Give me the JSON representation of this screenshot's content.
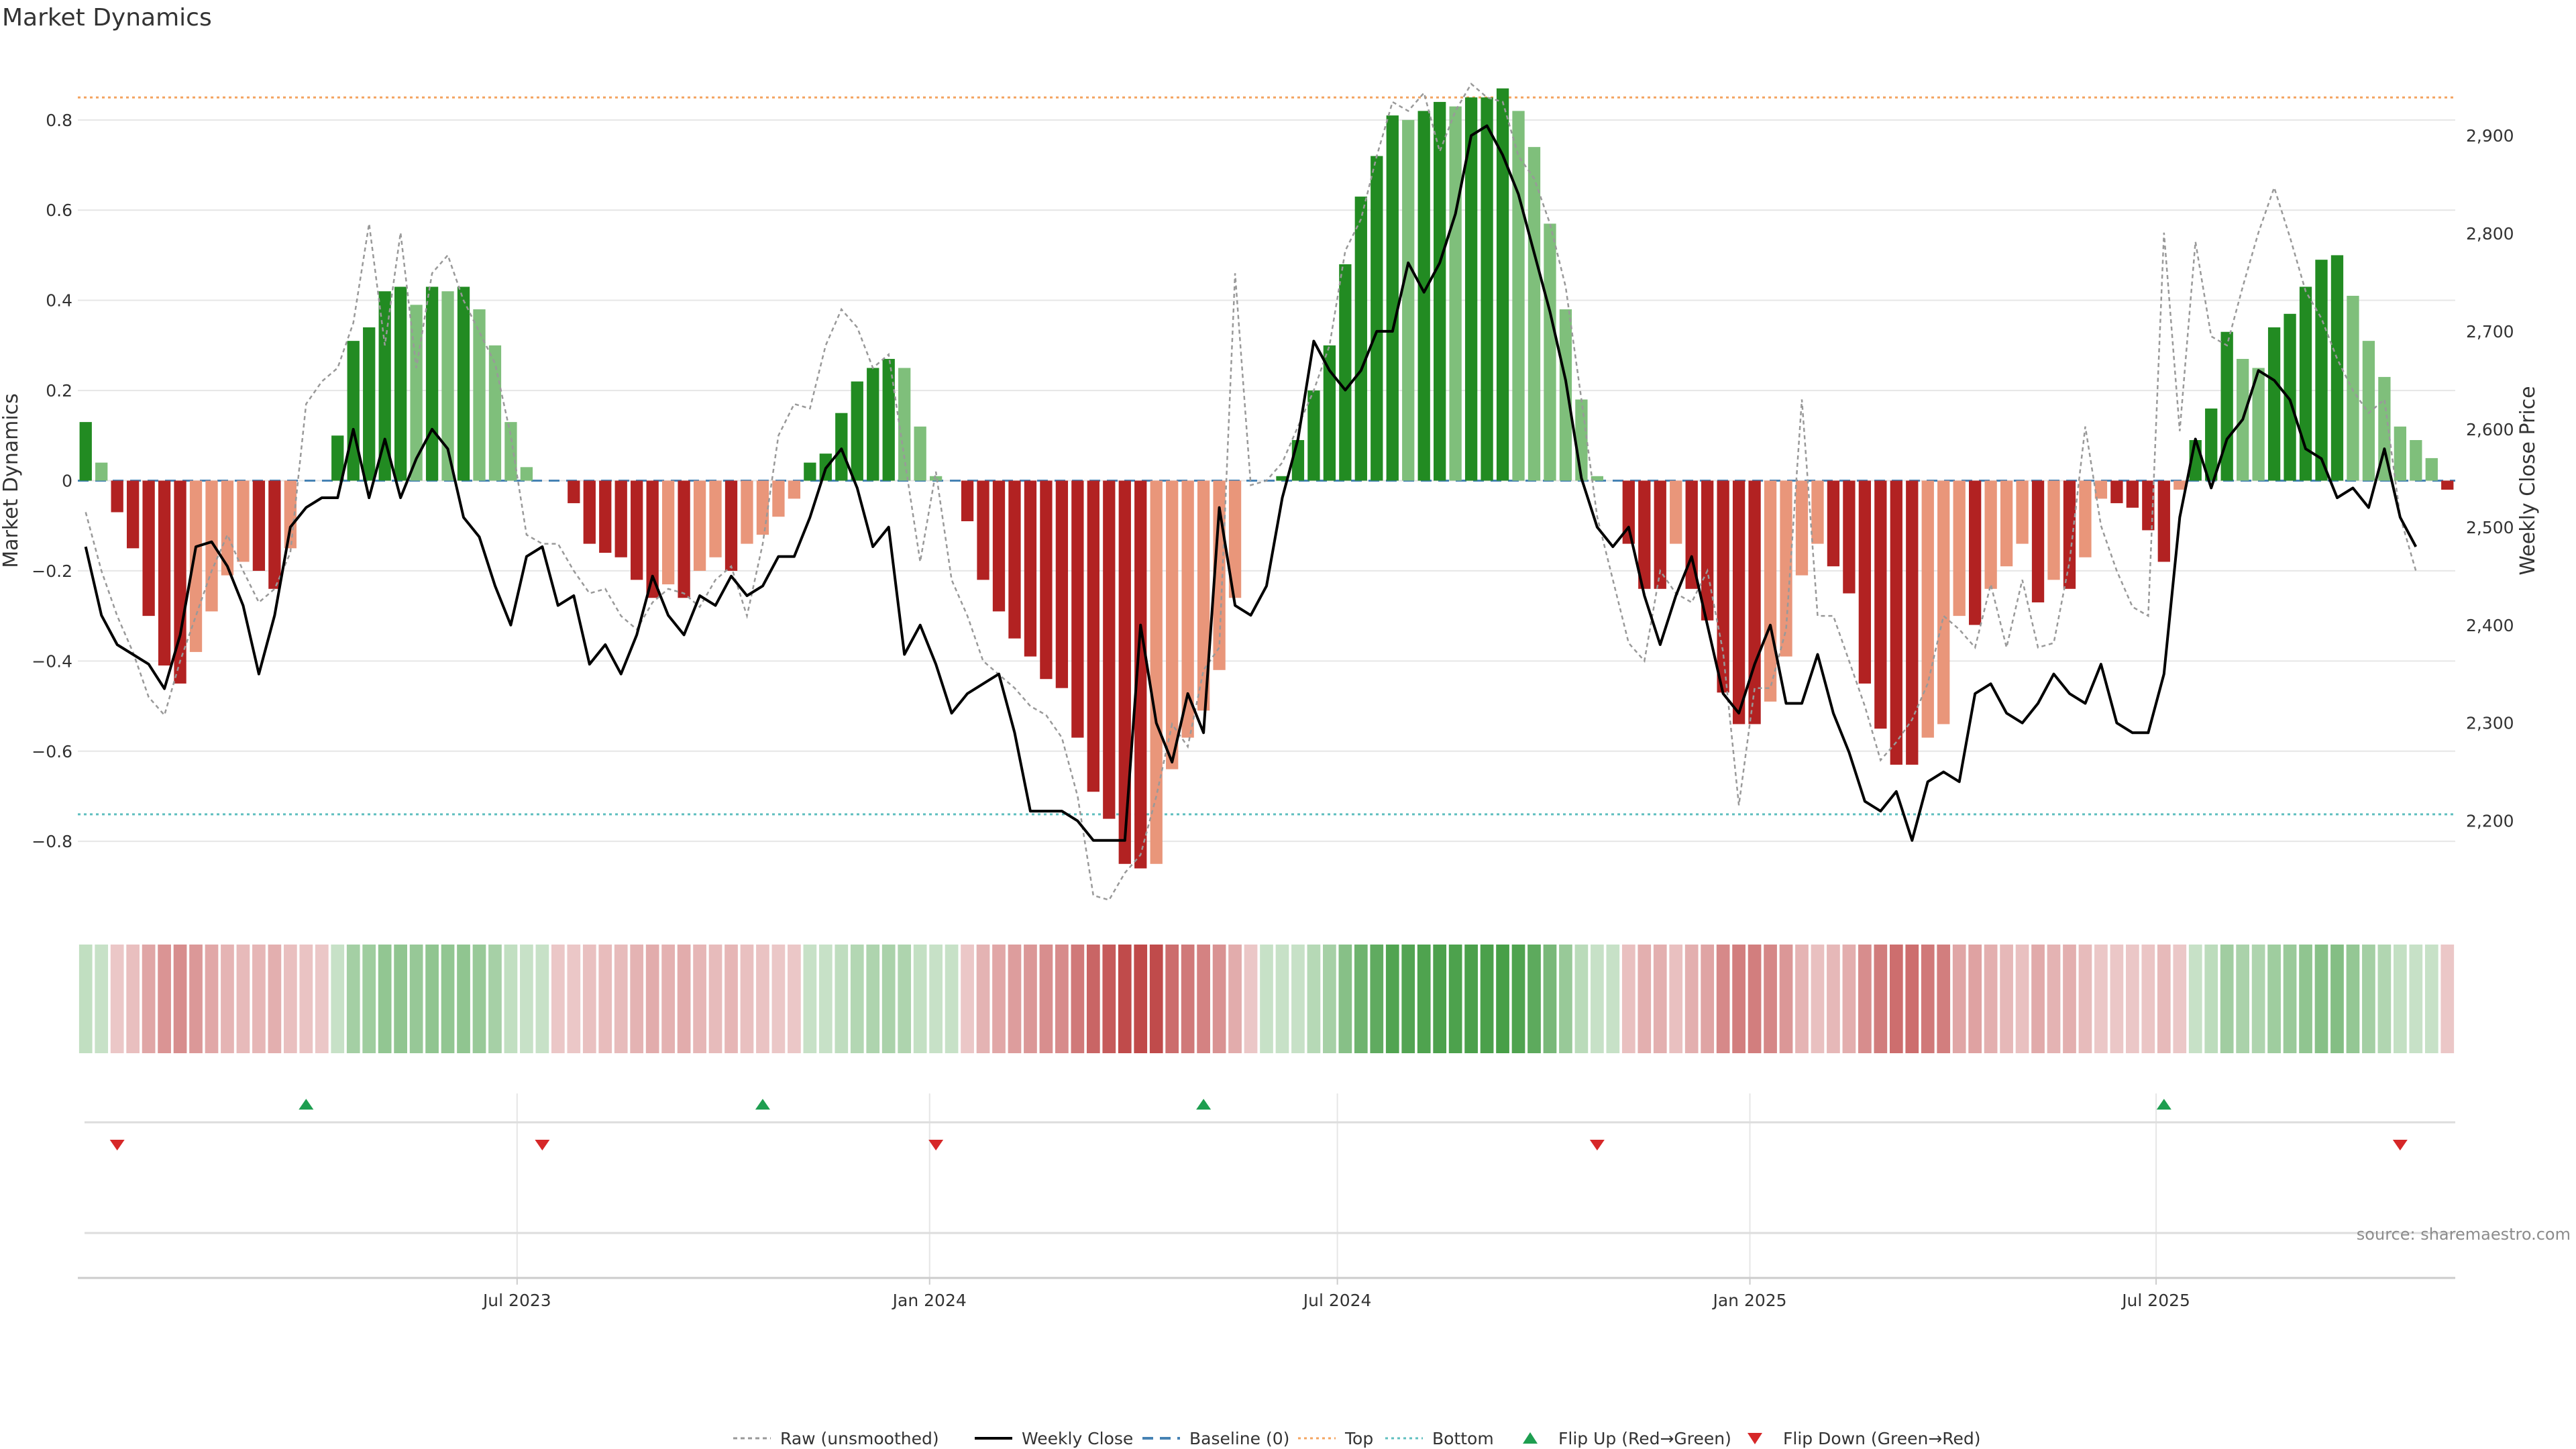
{
  "title": "Market Dynamics",
  "source": "source: sharemaestro.com",
  "colors": {
    "strong_green": "#228b22",
    "light_green": "#7fbf7b",
    "strong_red": "#b22222",
    "light_red": "#e9967a",
    "raw": "#999999",
    "close": "#000000",
    "baseline": "#4682b4",
    "top": "#f4a460",
    "bottom": "#5fbfbf",
    "flip_up": "#1e9e50",
    "flip_down": "#d62728",
    "grid": "#e6e6e6"
  },
  "legend": [
    {
      "key": "raw",
      "label": "Raw (unsmoothed)"
    },
    {
      "key": "close",
      "label": "Weekly Close"
    },
    {
      "key": "baseline",
      "label": "Baseline (0)"
    },
    {
      "key": "top",
      "label": "Top"
    },
    {
      "key": "bottom",
      "label": "Bottom"
    },
    {
      "key": "flip_up",
      "label": "Flip Up (Red→Green)"
    },
    {
      "key": "flip_down",
      "label": "Flip Down (Green→Red)"
    }
  ],
  "chart_data": {
    "type": "bar",
    "title": "Market Dynamics",
    "ylabel": "Market Dynamics",
    "y2label": "Weekly Close Price",
    "ylim": [
      -0.95,
      0.95
    ],
    "y2lim": [
      2110,
      2985
    ],
    "yticks": [
      -0.8,
      -0.6,
      -0.4,
      -0.2,
      0,
      0.2,
      0.4,
      0.6,
      0.8
    ],
    "ytick_labels": [
      "−0.8",
      "−0.6",
      "−0.4",
      "−0.2",
      "0",
      "0.2",
      "0.4",
      "0.6",
      "0.8"
    ],
    "y2ticks": [
      2200,
      2300,
      2400,
      2500,
      2600,
      2700,
      2800,
      2900
    ],
    "y2tick_labels": [
      "2,200",
      "2,300",
      "2,400",
      "2,500",
      "2,600",
      "2,700",
      "2,800",
      "2,900"
    ],
    "top_line": 0.85,
    "bottom_line": -0.74,
    "xticks": [
      {
        "week": 27.4,
        "label": "Jul 2023"
      },
      {
        "week": 53.6,
        "label": "Jan 2024"
      },
      {
        "week": 79.5,
        "label": "Jul 2024"
      },
      {
        "week": 105.7,
        "label": "Jan 2025"
      },
      {
        "week": 131.5,
        "label": "Jul 2025"
      }
    ],
    "series": [
      {
        "name": "Market Dynamics",
        "values": [
          0.13,
          0.04,
          -0.07,
          -0.15,
          -0.3,
          -0.41,
          -0.45,
          -0.38,
          -0.29,
          -0.21,
          -0.18,
          -0.2,
          -0.24,
          -0.15,
          0.0,
          0.0,
          0.1,
          0.31,
          0.34,
          0.42,
          0.43,
          0.39,
          0.43,
          0.42,
          0.43,
          0.38,
          0.3,
          0.13,
          0.03,
          0.0,
          0.0,
          -0.05,
          -0.14,
          -0.16,
          -0.17,
          -0.22,
          -0.26,
          -0.23,
          -0.26,
          -0.2,
          -0.17,
          -0.2,
          -0.14,
          -0.12,
          -0.08,
          -0.04,
          0.04,
          0.06,
          0.15,
          0.22,
          0.25,
          0.27,
          0.25,
          0.12,
          0.01,
          0.0,
          -0.09,
          -0.22,
          -0.29,
          -0.35,
          -0.39,
          -0.44,
          -0.46,
          -0.57,
          -0.69,
          -0.75,
          -0.85,
          -0.86,
          -0.85,
          -0.64,
          -0.57,
          -0.51,
          -0.42,
          -0.26,
          0.0,
          0.0,
          0.01,
          0.09,
          0.2,
          0.3,
          0.48,
          0.63,
          0.72,
          0.81,
          0.8,
          0.82,
          0.84,
          0.83,
          0.85,
          0.85,
          0.87,
          0.82,
          0.74,
          0.57,
          0.38,
          0.18,
          0.01,
          0.0,
          -0.14,
          -0.24,
          -0.24,
          -0.14,
          -0.24,
          -0.31,
          -0.47,
          -0.54,
          -0.54,
          -0.49,
          -0.39,
          -0.21,
          -0.14,
          -0.19,
          -0.25,
          -0.45,
          -0.55,
          -0.63,
          -0.63,
          -0.57,
          -0.54,
          -0.3,
          -0.32,
          -0.24,
          -0.19,
          -0.14,
          -0.27,
          -0.22,
          -0.24,
          -0.17,
          -0.04,
          -0.05,
          -0.06,
          -0.11,
          -0.18,
          -0.02,
          0.09,
          0.16,
          0.33,
          0.27,
          0.25,
          0.34,
          0.37,
          0.43,
          0.49,
          0.5,
          0.41,
          0.31,
          0.23,
          0.12,
          0.09,
          0.05,
          -0.02
        ]
      },
      {
        "name": "Raw (unsmoothed)",
        "values": [
          -0.07,
          -0.2,
          -0.3,
          -0.38,
          -0.48,
          -0.52,
          -0.4,
          -0.3,
          -0.2,
          -0.12,
          -0.2,
          -0.27,
          -0.24,
          -0.16,
          0.17,
          0.22,
          0.25,
          0.35,
          0.57,
          0.3,
          0.55,
          0.25,
          0.46,
          0.5,
          0.4,
          0.33,
          0.26,
          0.1,
          -0.12,
          -0.14,
          -0.14,
          -0.2,
          -0.25,
          -0.24,
          -0.3,
          -0.33,
          -0.27,
          -0.24,
          -0.25,
          -0.28,
          -0.22,
          -0.19,
          -0.3,
          -0.14,
          0.1,
          0.17,
          0.16,
          0.3,
          0.38,
          0.34,
          0.25,
          0.28,
          0.05,
          -0.18,
          0.02,
          -0.22,
          -0.3,
          -0.4,
          -0.43,
          -0.46,
          -0.5,
          -0.52,
          -0.57,
          -0.7,
          -0.92,
          -0.93,
          -0.87,
          -0.83,
          -0.7,
          -0.54,
          -0.59,
          -0.42,
          -0.37,
          0.46,
          -0.01,
          0.0,
          0.04,
          0.12,
          0.2,
          0.3,
          0.51,
          0.58,
          0.72,
          0.84,
          0.82,
          0.86,
          0.73,
          0.82,
          0.88,
          0.85,
          0.84,
          0.72,
          0.67,
          0.57,
          0.43,
          0.18,
          -0.08,
          -0.22,
          -0.36,
          -0.4,
          -0.2,
          -0.25,
          -0.27,
          -0.2,
          -0.38,
          -0.72,
          -0.46,
          -0.46,
          -0.33,
          0.18,
          -0.3,
          -0.3,
          -0.4,
          -0.5,
          -0.62,
          -0.58,
          -0.53,
          -0.45,
          -0.3,
          -0.33,
          -0.37,
          -0.23,
          -0.37,
          -0.22,
          -0.37,
          -0.36,
          -0.18,
          0.12,
          -0.1,
          -0.2,
          -0.28,
          -0.3,
          0.55,
          0.11,
          0.53,
          0.32,
          0.3,
          0.43,
          0.55,
          0.65,
          0.54,
          0.42,
          0.36,
          0.27,
          0.2,
          0.15,
          0.18,
          -0.08,
          -0.2
        ]
      },
      {
        "name": "Weekly Close",
        "values": [
          2480,
          2410,
          2380,
          2370,
          2360,
          2335,
          2390,
          2480,
          2485,
          2460,
          2420,
          2350,
          2410,
          2500,
          2520,
          2530,
          2530,
          2600,
          2530,
          2590,
          2530,
          2570,
          2600,
          2580,
          2510,
          2490,
          2440,
          2400,
          2470,
          2480,
          2420,
          2430,
          2360,
          2380,
          2350,
          2390,
          2450,
          2410,
          2390,
          2430,
          2420,
          2450,
          2430,
          2440,
          2470,
          2470,
          2510,
          2560,
          2580,
          2540,
          2480,
          2500,
          2370,
          2400,
          2360,
          2310,
          2330,
          2340,
          2350,
          2290,
          2210,
          2210,
          2210,
          2200,
          2180,
          2180,
          2180,
          2400,
          2300,
          2260,
          2330,
          2290,
          2520,
          2420,
          2410,
          2440,
          2530,
          2590,
          2690,
          2660,
          2640,
          2660,
          2700,
          2700,
          2770,
          2740,
          2770,
          2820,
          2900,
          2910,
          2880,
          2840,
          2780,
          2720,
          2650,
          2550,
          2500,
          2480,
          2500,
          2430,
          2380,
          2430,
          2470,
          2400,
          2330,
          2310,
          2360,
          2400,
          2320,
          2320,
          2370,
          2310,
          2270,
          2220,
          2210,
          2230,
          2180,
          2240,
          2250,
          2240,
          2330,
          2340,
          2310,
          2300,
          2320,
          2350,
          2330,
          2320,
          2360,
          2300,
          2290,
          2290,
          2350,
          2510,
          2590,
          2540,
          2590,
          2610,
          2660,
          2650,
          2630,
          2580,
          2570,
          2530,
          2540,
          2520,
          2580,
          2510,
          2480
        ]
      }
    ],
    "regime_strip": {
      "name": "Regime intensity",
      "values": [
        0.13,
        0.1,
        0.1,
        0.15,
        0.3,
        0.41,
        0.45,
        0.38,
        0.29,
        0.21,
        0.18,
        0.2,
        0.24,
        0.15,
        0.12,
        0.1,
        0.1,
        0.31,
        0.34,
        0.42,
        0.43,
        0.39,
        0.43,
        0.42,
        0.43,
        0.38,
        0.3,
        0.13,
        0.1,
        0.1,
        0.1,
        0.1,
        0.14,
        0.16,
        0.17,
        0.22,
        0.26,
        0.23,
        0.26,
        0.2,
        0.17,
        0.2,
        0.14,
        0.12,
        0.1,
        0.1,
        0.1,
        0.1,
        0.15,
        0.22,
        0.25,
        0.27,
        0.25,
        0.12,
        0.1,
        0.1,
        0.1,
        0.22,
        0.29,
        0.35,
        0.39,
        0.44,
        0.46,
        0.57,
        0.69,
        0.75,
        0.85,
        0.86,
        0.85,
        0.64,
        0.57,
        0.51,
        0.42,
        0.26,
        0.1,
        0.1,
        0.1,
        0.1,
        0.2,
        0.3,
        0.48,
        0.63,
        0.72,
        0.81,
        0.8,
        0.82,
        0.84,
        0.83,
        0.85,
        0.85,
        0.87,
        0.82,
        0.74,
        0.57,
        0.38,
        0.18,
        0.1,
        0.1,
        0.14,
        0.24,
        0.24,
        0.14,
        0.24,
        0.31,
        0.47,
        0.54,
        0.54,
        0.49,
        0.39,
        0.21,
        0.14,
        0.19,
        0.25,
        0.45,
        0.55,
        0.63,
        0.63,
        0.57,
        0.54,
        0.3,
        0.32,
        0.24,
        0.19,
        0.14,
        0.27,
        0.22,
        0.24,
        0.17,
        0.1,
        0.1,
        0.1,
        0.11,
        0.18,
        0.1,
        0.1,
        0.16,
        0.33,
        0.27,
        0.25,
        0.34,
        0.37,
        0.43,
        0.49,
        0.5,
        0.41,
        0.31,
        0.23,
        0.12,
        0.1,
        0.1,
        0.1
      ]
    },
    "flips_up": [
      14,
      43,
      71,
      132
    ],
    "flips_down": [
      2,
      29,
      54,
      96,
      147
    ]
  }
}
